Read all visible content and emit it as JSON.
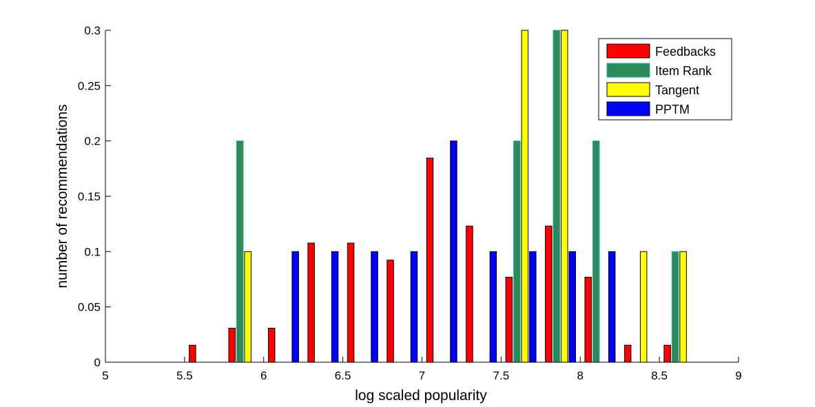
{
  "chart_data": {
    "type": "bar",
    "xlabel": "log scaled popularity",
    "ylabel": "number of recommendations",
    "xlim": [
      5,
      9
    ],
    "ylim": [
      0,
      0.3
    ],
    "xticks": [
      "5",
      "5.5",
      "6",
      "6.5",
      "7",
      "7.5",
      "8",
      "8.5",
      "9"
    ],
    "yticks": [
      "0",
      "0.05",
      "0.1",
      "0.15",
      "0.2",
      "0.25",
      "0.3"
    ],
    "grid": false,
    "legend_position": "top-right",
    "x": [
      5.125,
      5.375,
      5.625,
      5.875,
      6.125,
      6.375,
      6.625,
      6.875,
      7.125,
      7.375,
      7.625,
      7.875,
      8.125,
      8.375,
      8.625,
      8.875
    ],
    "series": [
      {
        "name": "Feedbacks",
        "color": "#ff0000",
        "values": [
          0,
          0,
          0.0154,
          0.0308,
          0.0308,
          0.1077,
          0.1077,
          0.0923,
          0.1846,
          0.1231,
          0.0769,
          0.1231,
          0.0769,
          0.0154,
          0.0154,
          0
        ]
      },
      {
        "name": "Item Rank",
        "color": "#2e8b57",
        "edge_color": "#1ab0b0",
        "values": [
          0,
          0,
          0,
          0.2,
          0,
          0,
          0,
          0,
          0,
          0,
          0.2,
          0.3,
          0.2,
          0,
          0.1,
          0
        ]
      },
      {
        "name": "Tangent",
        "color": "#ffff00",
        "values": [
          0,
          0,
          0,
          0.1,
          0,
          0,
          0,
          0,
          0,
          0,
          0.3,
          0.3,
          0,
          0.1,
          0.1,
          0
        ]
      },
      {
        "name": "PPTM",
        "color": "#0000ff",
        "values": [
          0,
          0,
          0,
          0,
          0.1,
          0.1,
          0.1,
          0.1,
          0.2,
          0.1,
          0.1,
          0.1,
          0.1,
          0,
          0,
          0
        ]
      }
    ]
  }
}
